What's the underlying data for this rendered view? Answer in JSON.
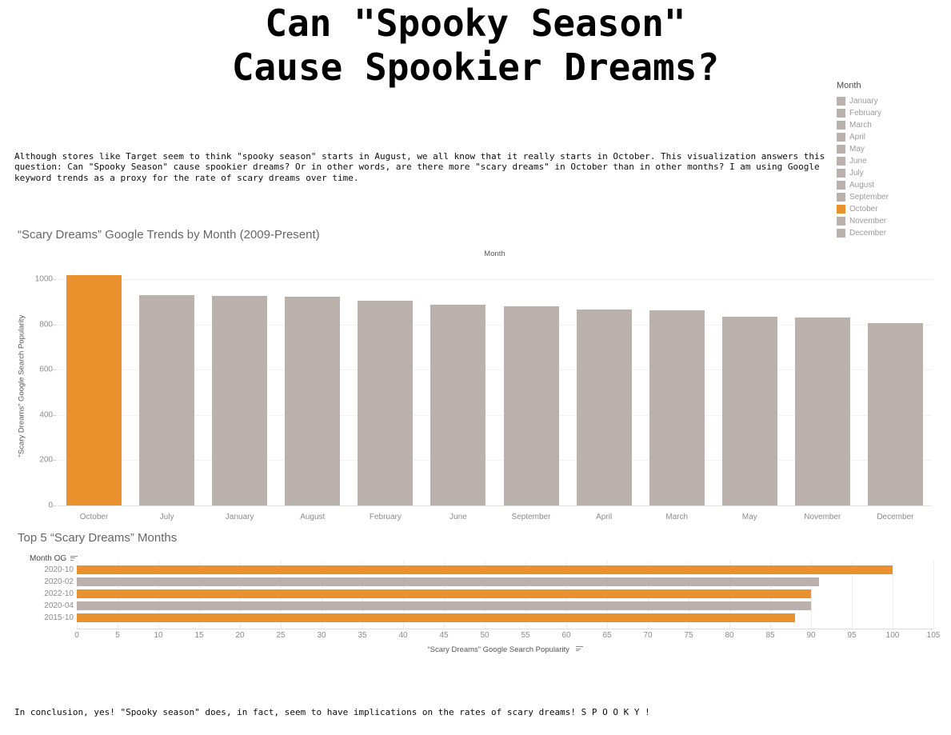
{
  "title": {
    "line1": "Can \"Spooky Season\"",
    "line2": "Cause Spookier Dreams?"
  },
  "intro": "Although stores like Target seem to think \"spooky season\" starts in August, we all know that it really starts in October. This visualization answers this question: Can \"Spooky Season\" cause spookier dreams? Or in other words, are there more \"scary dreams\" in October than in other months? I am using Google keyword trends as a proxy for the rate of scary dreams over time.",
  "conclusion": "In conclusion, yes! \"Spooky season\" does, in fact, seem to have implications on the rates of scary dreams! S P O O K Y !",
  "colors": {
    "accent": "#E8912D",
    "muted": "#BAB0AC"
  },
  "legend": {
    "title": "Month",
    "highlight": "October",
    "items": [
      "January",
      "February",
      "March",
      "April",
      "May",
      "June",
      "July",
      "August",
      "September",
      "October",
      "November",
      "December"
    ]
  },
  "chart_data": [
    {
      "type": "bar",
      "title": "“Scary Dreams” Google Trends by Month (2009-Present)",
      "column_header": "Month",
      "ylabel": "“Scary Dreams” Google Search Popularity",
      "categories": [
        "October",
        "July",
        "January",
        "August",
        "February",
        "June",
        "September",
        "April",
        "March",
        "May",
        "November",
        "December"
      ],
      "values": [
        1020,
        930,
        928,
        922,
        905,
        888,
        880,
        866,
        864,
        834,
        830,
        805
      ],
      "highlight_category": "October",
      "ylim": [
        0,
        1050
      ],
      "yticks": [
        0,
        200,
        400,
        600,
        800,
        1000
      ],
      "grid": "horizontal",
      "legend_position": "right"
    },
    {
      "type": "bar",
      "orientation": "horizontal",
      "title": "Top 5 “Scary Dreams” Months",
      "row_header": "Month OG",
      "xlabel": "“Scary Dreams” Google Search Popularity",
      "categories": [
        "2020-10",
        "2020-02",
        "2022-10",
        "2020-04",
        "2015-10"
      ],
      "values": [
        100,
        91,
        90,
        90,
        88
      ],
      "bar_colors": [
        "accent",
        "muted",
        "accent",
        "muted",
        "accent"
      ],
      "xlim": [
        0,
        105
      ],
      "xticks": [
        0,
        5,
        10,
        15,
        20,
        25,
        30,
        35,
        40,
        45,
        50,
        55,
        60,
        65,
        70,
        75,
        80,
        85,
        90,
        95,
        100,
        105
      ],
      "grid": "vertical"
    }
  ]
}
